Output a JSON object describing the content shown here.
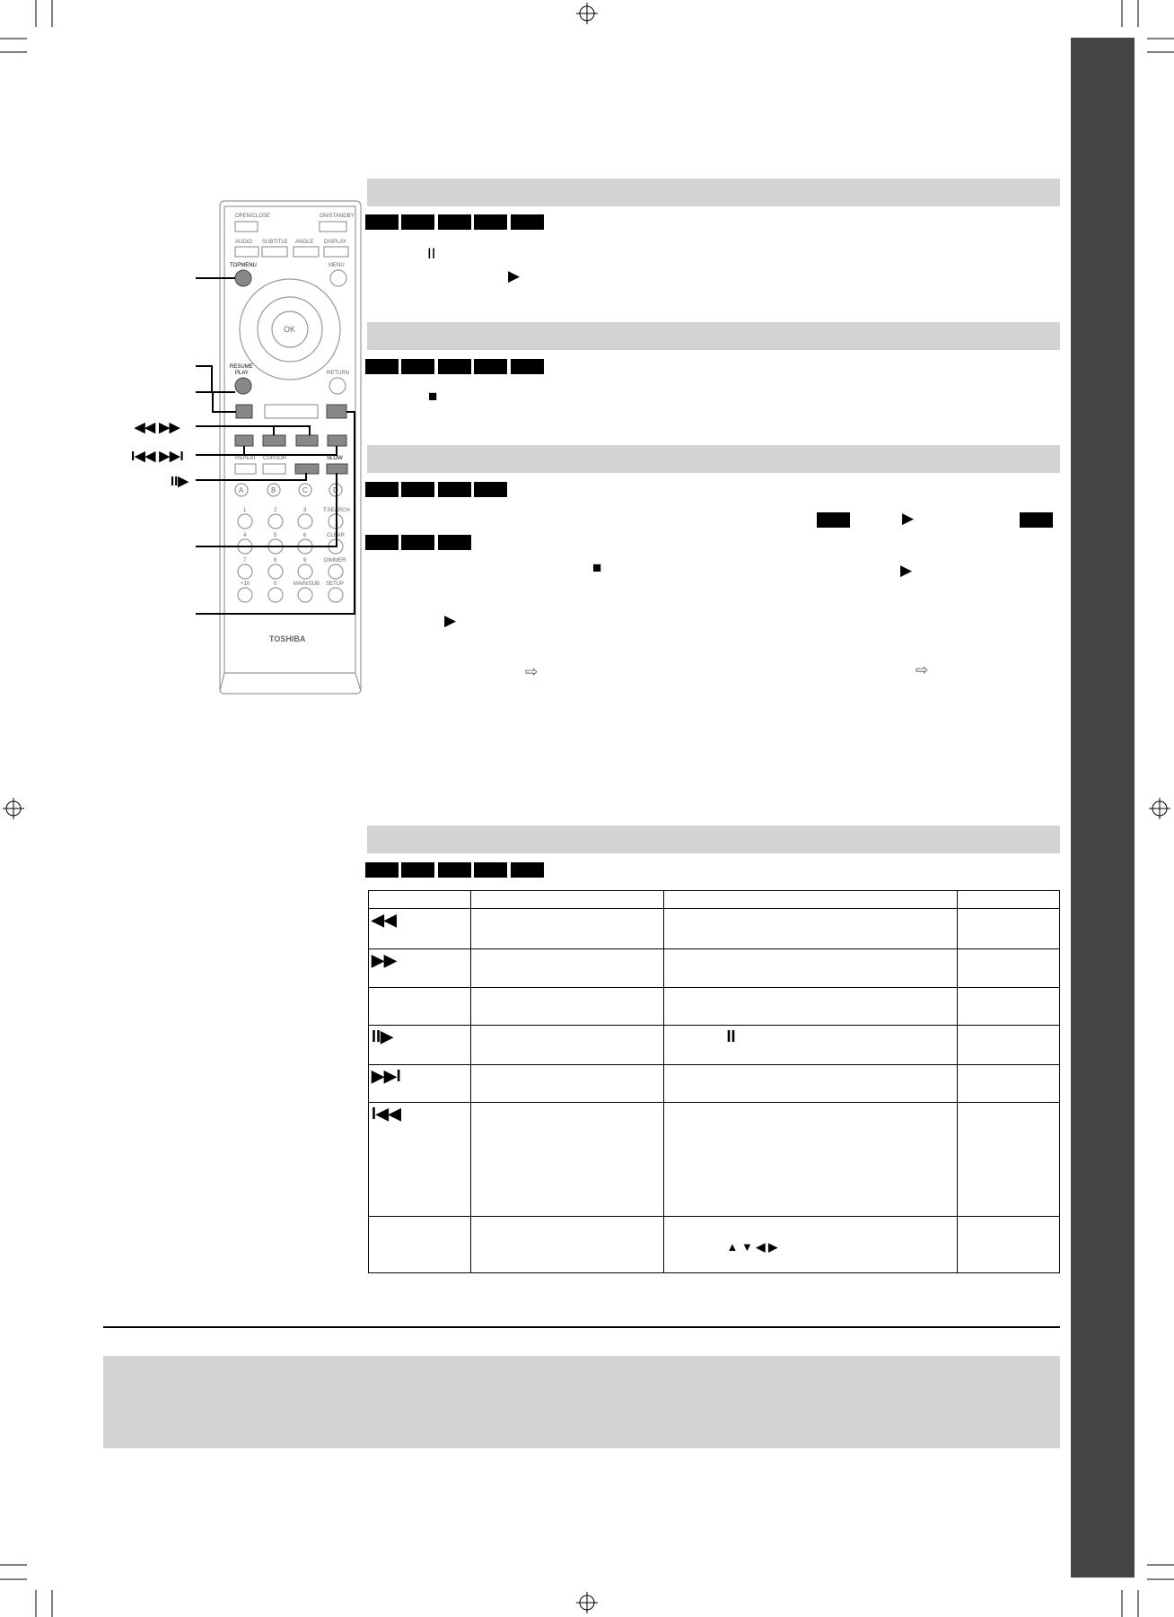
{
  "colors": {
    "section_header": "#d3d3d3",
    "sidebar": "#444444",
    "badge": "#000000"
  },
  "remote": {
    "brand": "TOSHIBA",
    "labels": {
      "open_close": "OPEN/CLOSE",
      "on_standby": "ON/STANDBY",
      "audio": "AUDIO",
      "subtitle": "SUBTITLE",
      "angle": "ANGLE",
      "display": "DISPLAY",
      "top_menu": "TOPMENU",
      "menu": "MENU",
      "ok": "OK",
      "resume": "RESUME",
      "play": "PLAY",
      "return": "RETURN",
      "repeat": "REPEAT",
      "cursor": "CURSOR",
      "slow": "SLOW",
      "t_search": "T.SEARCH",
      "clear": "CLEAR",
      "dimmer": "DIMMER",
      "plus10": "+10",
      "main_sub": "MAIN/SUB",
      "setup": "SETUP",
      "a": "A",
      "b": "B",
      "c": "C",
      "d": "D",
      "n0": "0",
      "n1": "1",
      "n2": "2",
      "n3": "3",
      "n4": "4",
      "n5": "5",
      "n6": "6",
      "n7": "7",
      "n8": "8",
      "n9": "9"
    },
    "callouts": {
      "rew_ff": "◀◀ ▶▶",
      "skip": "I◀◀ ▶▶I",
      "step": "II▶"
    }
  },
  "table": {
    "row_icons": [
      "◀◀",
      "▶▶",
      "",
      "II▶",
      "▶▶I",
      "I◀◀",
      ""
    ],
    "row_notes": [
      "",
      "",
      "",
      "II",
      "",
      "",
      "▲ ▼ ◀ ▶"
    ]
  },
  "icons": {
    "pause": "II",
    "play": "▶",
    "stop": "■",
    "arrow": "⇨"
  }
}
